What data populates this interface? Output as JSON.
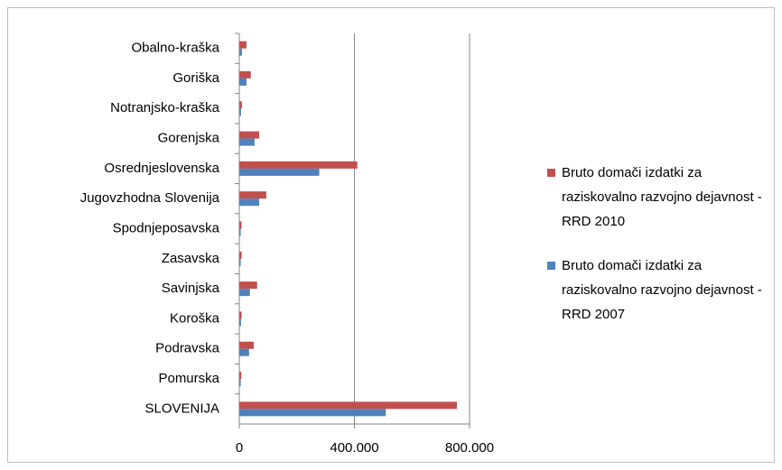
{
  "chart_data": {
    "type": "hbar",
    "categories": [
      "Obalno-kraška",
      "Goriška",
      "Notranjsko-kraška",
      "Gorenjska",
      "Osrednjeslovenska",
      "Jugovzhodna Slovenija",
      "Spodnjeposavska",
      "Zasavska",
      "Savinjska",
      "Koroška",
      "Podravska",
      "Pomurska",
      "SLOVENIJA"
    ],
    "series": [
      {
        "name": "Bruto domači izdatki za raziskovalno razvojno dejavnost - RRD 2010",
        "color": "#c0504d",
        "values": [
          25000,
          40000,
          9000,
          69000,
          410000,
          94000,
          8000,
          8000,
          62000,
          8000,
          50000,
          7000,
          756000
        ]
      },
      {
        "name": "Bruto domači izdatki za raziskovalno razvojno dejavnost - RRD 2007",
        "color": "#4f81bd",
        "values": [
          9000,
          25000,
          6000,
          53000,
          278000,
          69000,
          5000,
          5000,
          37000,
          6000,
          34000,
          5000,
          509000
        ]
      }
    ],
    "xlim": [
      0,
      800000
    ],
    "xticks": [
      0,
      {
        "value": 400000,
        "label": "400.000"
      },
      {
        "value": 800000,
        "label": "800.000"
      }
    ],
    "grid": true
  }
}
